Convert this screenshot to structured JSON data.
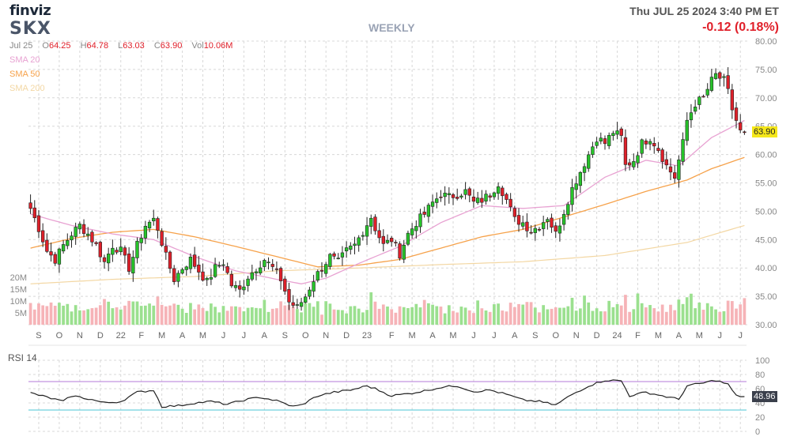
{
  "header": {
    "logo": "finviz",
    "ticker": "SKX",
    "timeframe": "WEEKLY",
    "datetime": "Thu JUL 25 2024 3:40 PM ET",
    "change": "-0.12 (0.18%)"
  },
  "ohlc": {
    "date": "Jul 25",
    "open_label": "O",
    "open": "64.25",
    "high_label": "H",
    "high": "64.78",
    "low_label": "L",
    "low": "63.03",
    "close_label": "C",
    "close": "63.90",
    "volume_label": "Vol",
    "volume": "10.06M"
  },
  "legend": {
    "sma20": "SMA 20",
    "sma50": "SMA 50",
    "sma200": "SMA 200"
  },
  "colors": {
    "up": "#27c42a",
    "down": "#e0202a",
    "vol_up": "#9be08f",
    "vol_down": "#f6b3b7",
    "sma20": "#e8a2d2",
    "sma50": "#f6a24b",
    "sma200": "#f3d7a3",
    "rsi_line": "#222222",
    "rsi_upper": "#b37ad8",
    "rsi_lower": "#4bc6d6",
    "grid": "#d8d8d8",
    "price_tag": "#f5e71a"
  },
  "chart_data": {
    "type": "candlestick",
    "interval": "weekly",
    "last_price": "63.90",
    "price_axis": {
      "ticks": [
        "30.00",
        "35.00",
        "40.00",
        "45.00",
        "50.00",
        "55.00",
        "60.00",
        "65.00",
        "70.00",
        "75.00",
        "80.00"
      ],
      "ylim": [
        30,
        80
      ]
    },
    "volume_axis": {
      "ticks": [
        "5M",
        "10M",
        "15M",
        "20M"
      ],
      "ylim": [
        0,
        20
      ]
    },
    "x_ticks": [
      "S",
      "O",
      "N",
      "D",
      "22",
      "F",
      "M",
      "A",
      "M",
      "J",
      "J",
      "A",
      "S",
      "O",
      "N",
      "D",
      "23",
      "F",
      "M",
      "A",
      "M",
      "J",
      "J",
      "A",
      "S",
      "O",
      "N",
      "D",
      "24",
      "F",
      "M",
      "A",
      "M",
      "J",
      "J"
    ],
    "anchors": [
      [
        0,
        50.5
      ],
      [
        2,
        47
      ],
      [
        4,
        43
      ],
      [
        6,
        41.5
      ],
      [
        8,
        44
      ],
      [
        10,
        46
      ],
      [
        12,
        47.5
      ],
      [
        14,
        46
      ],
      [
        16,
        44
      ],
      [
        18,
        41
      ],
      [
        20,
        44
      ],
      [
        22,
        43
      ],
      [
        24,
        40
      ],
      [
        26,
        44
      ],
      [
        28,
        47.5
      ],
      [
        30,
        48.5
      ],
      [
        31,
        47
      ],
      [
        33,
        42
      ],
      [
        35,
        38
      ],
      [
        37,
        40
      ],
      [
        39,
        41.5
      ],
      [
        41,
        39.5
      ],
      [
        43,
        37.5
      ],
      [
        45,
        40
      ],
      [
        47,
        41
      ],
      [
        49,
        37
      ],
      [
        51,
        36
      ],
      [
        53,
        38.5
      ],
      [
        55,
        40
      ],
      [
        57,
        41.5
      ],
      [
        59,
        40
      ],
      [
        61,
        38
      ],
      [
        63,
        34
      ],
      [
        65,
        33
      ],
      [
        67,
        35
      ],
      [
        69,
        38
      ],
      [
        71,
        40
      ],
      [
        73,
        42
      ],
      [
        75,
        41
      ],
      [
        77,
        43
      ],
      [
        79,
        44
      ],
      [
        81,
        46.5
      ],
      [
        83,
        49
      ],
      [
        84,
        47
      ],
      [
        86,
        44
      ],
      [
        88,
        45
      ],
      [
        90,
        42.5
      ],
      [
        92,
        46
      ],
      [
        94,
        48
      ],
      [
        96,
        49.5
      ],
      [
        98,
        51.5
      ],
      [
        100,
        53
      ],
      [
        102,
        52.5
      ],
      [
        104,
        53
      ],
      [
        106,
        53.5
      ],
      [
        108,
        51.5
      ],
      [
        110,
        52
      ],
      [
        112,
        53
      ],
      [
        114,
        55
      ],
      [
        116,
        52
      ],
      [
        118,
        48.5
      ],
      [
        120,
        48
      ],
      [
        122,
        46.5
      ],
      [
        124,
        47.5
      ],
      [
        126,
        49
      ],
      [
        128,
        46
      ],
      [
        130,
        50
      ],
      [
        132,
        54
      ],
      [
        134,
        57
      ],
      [
        136,
        60
      ],
      [
        138,
        63
      ],
      [
        140,
        62
      ],
      [
        142,
        64
      ],
      [
        144,
        63
      ],
      [
        145,
        58
      ],
      [
        147,
        59
      ],
      [
        149,
        62
      ],
      [
        151,
        63
      ],
      [
        153,
        61
      ],
      [
        155,
        58
      ],
      [
        157,
        56
      ],
      [
        159,
        62
      ],
      [
        160,
        66
      ],
      [
        162,
        69
      ],
      [
        164,
        70
      ],
      [
        166,
        73
      ],
      [
        167,
        74
      ],
      [
        169,
        73
      ],
      [
        170,
        71
      ],
      [
        171,
        68
      ],
      [
        173,
        64
      ],
      [
        174,
        63.9
      ]
    ],
    "sma_anchors": {
      "sma20": [
        [
          0,
          49.5
        ],
        [
          10,
          47.5
        ],
        [
          20,
          46
        ],
        [
          30,
          45
        ],
        [
          40,
          42
        ],
        [
          50,
          39.5
        ],
        [
          60,
          38
        ],
        [
          66,
          37.2
        ],
        [
          72,
          38.2
        ],
        [
          80,
          40.8
        ],
        [
          90,
          43.8
        ],
        [
          100,
          48
        ],
        [
          110,
          51
        ],
        [
          120,
          50.5
        ],
        [
          130,
          51
        ],
        [
          140,
          56
        ],
        [
          150,
          59
        ],
        [
          158,
          58
        ],
        [
          166,
          63
        ],
        [
          174,
          66
        ]
      ],
      "sma50": [
        [
          0,
          43.5
        ],
        [
          10,
          45.2
        ],
        [
          20,
          46.3
        ],
        [
          30,
          46.8
        ],
        [
          40,
          45.5
        ],
        [
          50,
          43.8
        ],
        [
          60,
          42
        ],
        [
          70,
          40.2
        ],
        [
          80,
          40.5
        ],
        [
          90,
          41.5
        ],
        [
          100,
          43.5
        ],
        [
          110,
          45.5
        ],
        [
          120,
          46.8
        ],
        [
          130,
          49
        ],
        [
          140,
          51.2
        ],
        [
          150,
          53.5
        ],
        [
          160,
          55.5
        ],
        [
          166,
          57.5
        ],
        [
          174,
          59.5
        ]
      ],
      "sma200": [
        [
          0,
          37.2
        ],
        [
          20,
          38
        ],
        [
          40,
          38.5
        ],
        [
          60,
          39.5
        ],
        [
          80,
          40
        ],
        [
          100,
          40.6
        ],
        [
          120,
          41.1
        ],
        [
          140,
          42.2
        ],
        [
          160,
          44.5
        ],
        [
          174,
          47.5
        ]
      ]
    },
    "rsi": {
      "label": "RSI 14",
      "current": "48.96",
      "ticks": [
        "0",
        "20",
        "40",
        "60",
        "80",
        "100"
      ],
      "ylim": [
        0,
        100
      ],
      "upper": 70,
      "lower": 30,
      "anchors": [
        [
          0,
          54
        ],
        [
          4,
          48
        ],
        [
          8,
          42
        ],
        [
          10,
          50
        ],
        [
          14,
          46
        ],
        [
          18,
          40
        ],
        [
          22,
          42
        ],
        [
          26,
          55
        ],
        [
          30,
          58
        ],
        [
          32,
          35
        ],
        [
          36,
          36
        ],
        [
          40,
          40
        ],
        [
          44,
          42
        ],
        [
          48,
          38
        ],
        [
          52,
          44
        ],
        [
          56,
          48
        ],
        [
          60,
          43
        ],
        [
          64,
          35
        ],
        [
          66,
          37
        ],
        [
          70,
          50
        ],
        [
          74,
          55
        ],
        [
          78,
          58
        ],
        [
          82,
          64
        ],
        [
          84,
          60
        ],
        [
          88,
          50
        ],
        [
          92,
          53
        ],
        [
          96,
          57
        ],
        [
          100,
          62
        ],
        [
          104,
          64
        ],
        [
          108,
          56
        ],
        [
          112,
          58
        ],
        [
          116,
          52
        ],
        [
          120,
          44
        ],
        [
          124,
          42
        ],
        [
          128,
          37
        ],
        [
          132,
          52
        ],
        [
          136,
          64
        ],
        [
          140,
          72
        ],
        [
          144,
          71
        ],
        [
          146,
          50
        ],
        [
          150,
          55
        ],
        [
          154,
          50
        ],
        [
          158,
          45
        ],
        [
          160,
          64
        ],
        [
          164,
          68
        ],
        [
          167,
          72
        ],
        [
          170,
          66
        ],
        [
          172,
          50
        ],
        [
          174,
          49
        ]
      ]
    }
  }
}
